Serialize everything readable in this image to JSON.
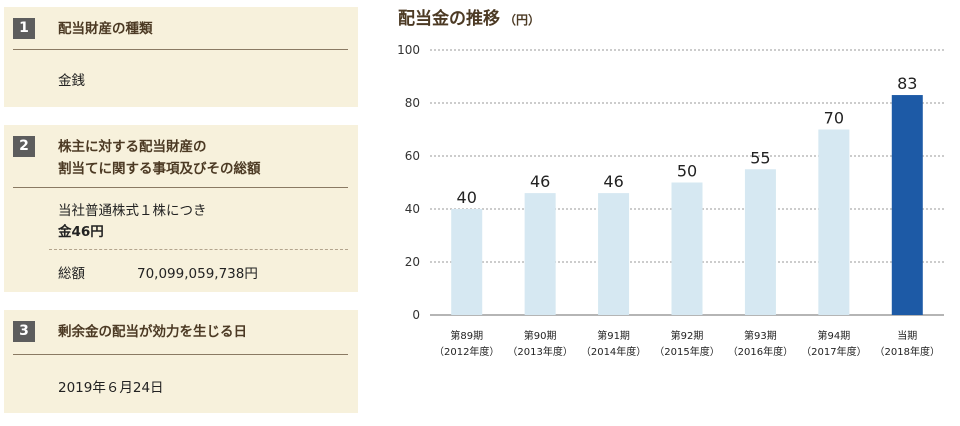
{
  "sections": [
    {
      "number": "1",
      "heading_lines": [
        "配当財産の種類"
      ],
      "value": "金銭"
    },
    {
      "number": "2",
      "heading_lines": [
        "株主に対する配当財産の",
        "割当てに関する事項及びその総額"
      ],
      "per_share_label": "当社普通株式１株につき",
      "per_share_value": "金46円",
      "total_label": "総額",
      "total_value": "70,099,059,738円"
    },
    {
      "number": "3",
      "heading_lines": [
        "剰余金の配当が効力を生じる日"
      ],
      "value": "2019年６月24日"
    }
  ],
  "chart_title": "配当金の推移",
  "chart_unit": "（円）",
  "chart_data": {
    "type": "bar",
    "title": "配当金の推移",
    "ylabel": "（円）",
    "categories": [
      "第89期",
      "第90期",
      "第91期",
      "第92期",
      "第93期",
      "第94期",
      "当期"
    ],
    "category_years": [
      "（2012年度）",
      "（2013年度）",
      "（2014年度）",
      "（2015年度）",
      "（2016年度）",
      "（2017年度）",
      "（2018年度）"
    ],
    "values": [
      40,
      46,
      46,
      50,
      55,
      70,
      83
    ],
    "data_labels": [
      "40",
      "46",
      "46",
      "50",
      "55",
      "70",
      "83"
    ],
    "ylim": [
      0,
      100
    ],
    "yticks": [
      0,
      20,
      40,
      60,
      80,
      100
    ],
    "grid": true,
    "highlight_index": 6,
    "colors": {
      "bar": "#d6e8f2",
      "highlight": "#1d5aa6",
      "grid": "#9a9a9a"
    }
  }
}
